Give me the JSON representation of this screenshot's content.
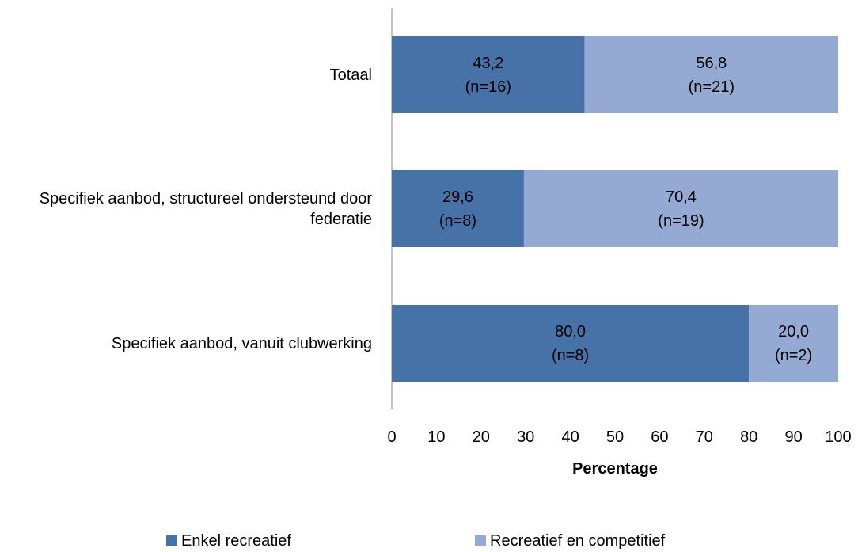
{
  "chart_data": {
    "type": "stacked_barh",
    "categories": [
      "Totaal",
      "Specifiek aanbod, structureel ondersteund door federatie",
      "Specifiek aanbod, vanuit clubwerking"
    ],
    "series": [
      {
        "name": "Enkel recreatief",
        "color": "#4672a7",
        "values": [
          43.2,
          29.6,
          80.0
        ],
        "value_labels": [
          "43,2",
          "29,6",
          "80,0"
        ],
        "n_labels": [
          "(n=16)",
          "(n=8)",
          "(n=8)"
        ]
      },
      {
        "name": "Recreatief en competitief",
        "color": "#95aad3",
        "values": [
          56.8,
          70.4,
          20.0
        ],
        "value_labels": [
          "56,8",
          "70,4",
          "20,0"
        ],
        "n_labels": [
          "(n=21)",
          "(n=19)",
          "(n=2)"
        ]
      }
    ],
    "xlabel": "Percentage",
    "xlim": [
      0,
      100
    ],
    "xticks": [
      0,
      10,
      20,
      30,
      40,
      50,
      60,
      70,
      80,
      90,
      100
    ],
    "grid": false,
    "legend": "bottom"
  }
}
